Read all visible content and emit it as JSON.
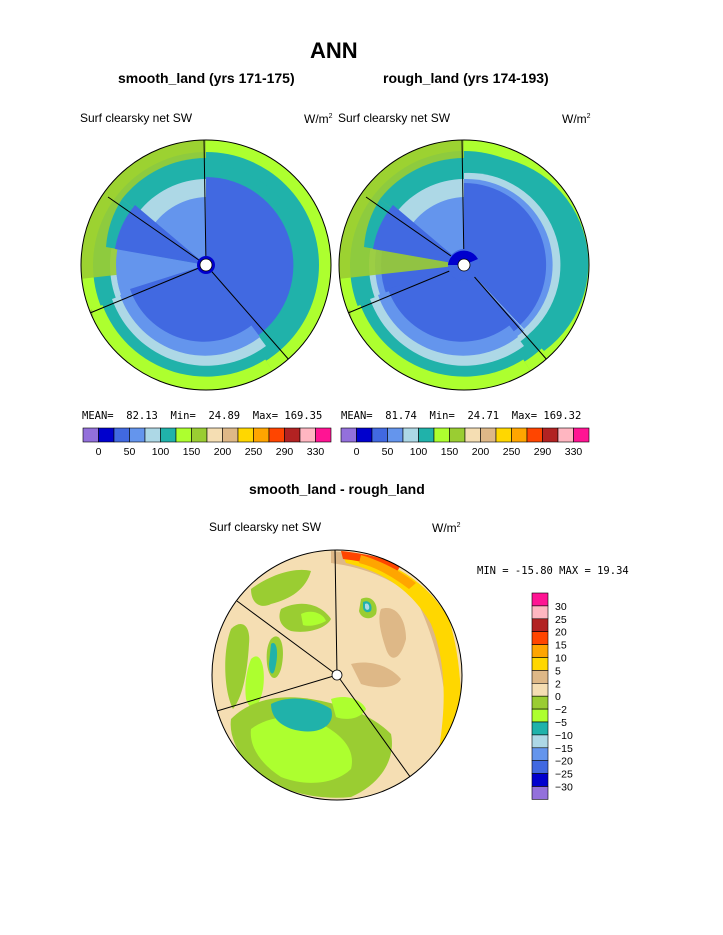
{
  "title": "ANN",
  "panel_left": {
    "subtitle": "smooth_land (yrs 171-175)",
    "var_label": "Surf clearsky net SW",
    "units_prefix": "W/m",
    "units_sup": "2",
    "stats": {
      "mean_label": "MEAN=",
      "mean": "82.13",
      "min_label": "Min=",
      "min": "24.89",
      "max_label": "Max=",
      "max": "169.35"
    }
  },
  "panel_right": {
    "subtitle": "rough_land (yrs 174-193)",
    "var_label": "Surf clearsky net SW",
    "units_prefix": "W/m",
    "units_sup": "2",
    "stats": {
      "mean_label": "MEAN=",
      "mean": "81.74",
      "min_label": "Min=",
      "min": "24.71",
      "max_label": "Max=",
      "max": "169.32"
    }
  },
  "colorbar_top": {
    "colors": [
      "#9370DB",
      "#0000CD",
      "#4169E1",
      "#6495ED",
      "#ADD8E6",
      "#20B2AA",
      "#ADFF2F",
      "#9ACD32",
      "#F5DEB3",
      "#DEB887",
      "#FFD700",
      "#FFA500",
      "#FF4500",
      "#B22222",
      "#FFB6C1",
      "#FF1493"
    ],
    "tick_labels": [
      "0",
      "50",
      "100",
      "150",
      "200",
      "250",
      "290",
      "330"
    ]
  },
  "panel_diff": {
    "subtitle": "smooth_land - rough_land",
    "var_label": "Surf clearsky net SW",
    "units_prefix": "W/m",
    "units_sup": "2",
    "minmax": "MIN = -15.80 MAX =  19.34"
  },
  "colorbar_diff": {
    "colors": [
      "#FF1493",
      "#FFB6C1",
      "#B22222",
      "#FF4500",
      "#FFA500",
      "#FFD700",
      "#DEB887",
      "#F5DEB3",
      "#9ACD32",
      "#ADFF2F",
      "#20B2AA",
      "#ADD8E6",
      "#6495ED",
      "#4169E1",
      "#0000CD",
      "#9370DB"
    ],
    "tick_labels": [
      "30",
      "25",
      "20",
      "15",
      "10",
      "5",
      "2",
      "0",
      "−2",
      "−5",
      "−10",
      "−15",
      "−20",
      "−25",
      "−30"
    ]
  },
  "chart_data": [
    {
      "type": "heatmap",
      "title": "smooth_land (yrs 171-175)",
      "variable": "Surf clearsky net SW",
      "units": "W/m2",
      "mean": 82.13,
      "min": 24.89,
      "max": 169.35,
      "contour_levels": [
        0,
        25,
        50,
        75,
        100,
        125,
        150,
        175,
        200,
        225,
        250,
        270,
        290,
        310,
        330
      ]
    },
    {
      "type": "heatmap",
      "title": "rough_land (yrs 174-193)",
      "variable": "Surf clearsky net SW",
      "units": "W/m2",
      "mean": 81.74,
      "min": 24.71,
      "max": 169.32,
      "contour_levels": [
        0,
        25,
        50,
        75,
        100,
        125,
        150,
        175,
        200,
        225,
        250,
        270,
        290,
        310,
        330
      ]
    },
    {
      "type": "heatmap",
      "title": "smooth_land - rough_land",
      "variable": "Surf clearsky net SW",
      "units": "W/m2",
      "min": -15.8,
      "max": 19.34,
      "contour_levels": [
        -30,
        -25,
        -20,
        -15,
        -10,
        -5,
        -2,
        0,
        2,
        5,
        10,
        15,
        20,
        25,
        30
      ]
    }
  ]
}
